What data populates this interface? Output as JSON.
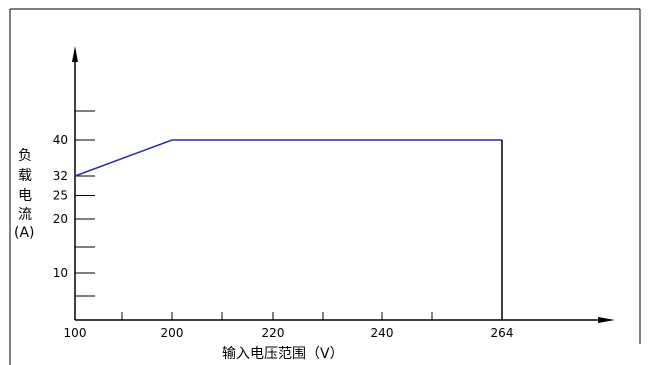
{
  "chart_data": {
    "type": "line",
    "xlabel": "输入电压范围（V）",
    "ylabel_chars": [
      "负",
      "载",
      "电",
      "流",
      "(A)"
    ],
    "x_categories": [
      "100",
      "200",
      "220",
      "240",
      "264"
    ],
    "y_ticks": [
      "10",
      "20",
      "25",
      "32",
      "40"
    ],
    "series": [
      {
        "points": [
          {
            "x": "100",
            "y": 32
          },
          {
            "x": "200",
            "y": 40
          },
          {
            "x": "264",
            "y": 40
          }
        ],
        "color": "#2b2fa8"
      }
    ],
    "drop_line": {
      "x": "264",
      "from_y": 40,
      "to_y": 0,
      "color": "#000000"
    },
    "ylim": [
      0,
      50
    ]
  }
}
